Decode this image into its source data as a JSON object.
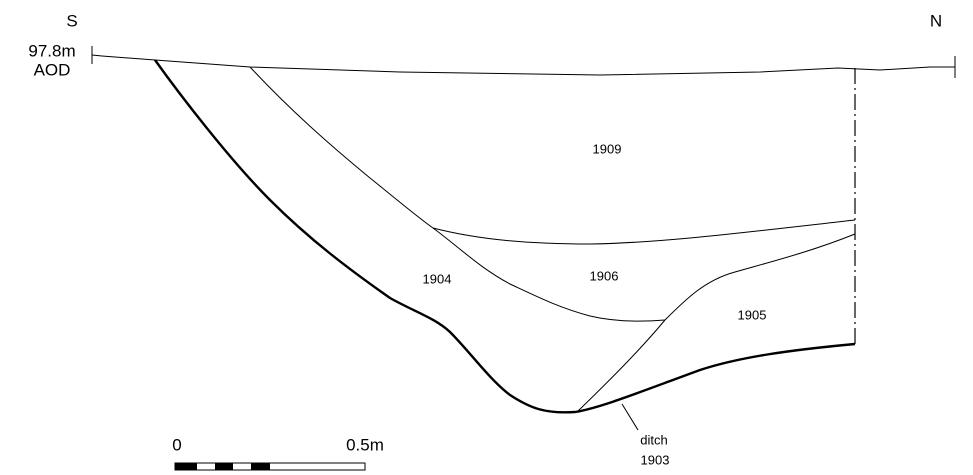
{
  "orientation": {
    "left": "S",
    "right": "N"
  },
  "datum": {
    "level": "97.8m",
    "reference": "AOD"
  },
  "contexts": [
    {
      "label": "1909"
    },
    {
      "label": "1904"
    },
    {
      "label": "1906"
    },
    {
      "label": "1905"
    }
  ],
  "cut": {
    "type": "ditch",
    "label": "1903"
  },
  "scale": {
    "start": "0",
    "end": "0.5m"
  }
}
